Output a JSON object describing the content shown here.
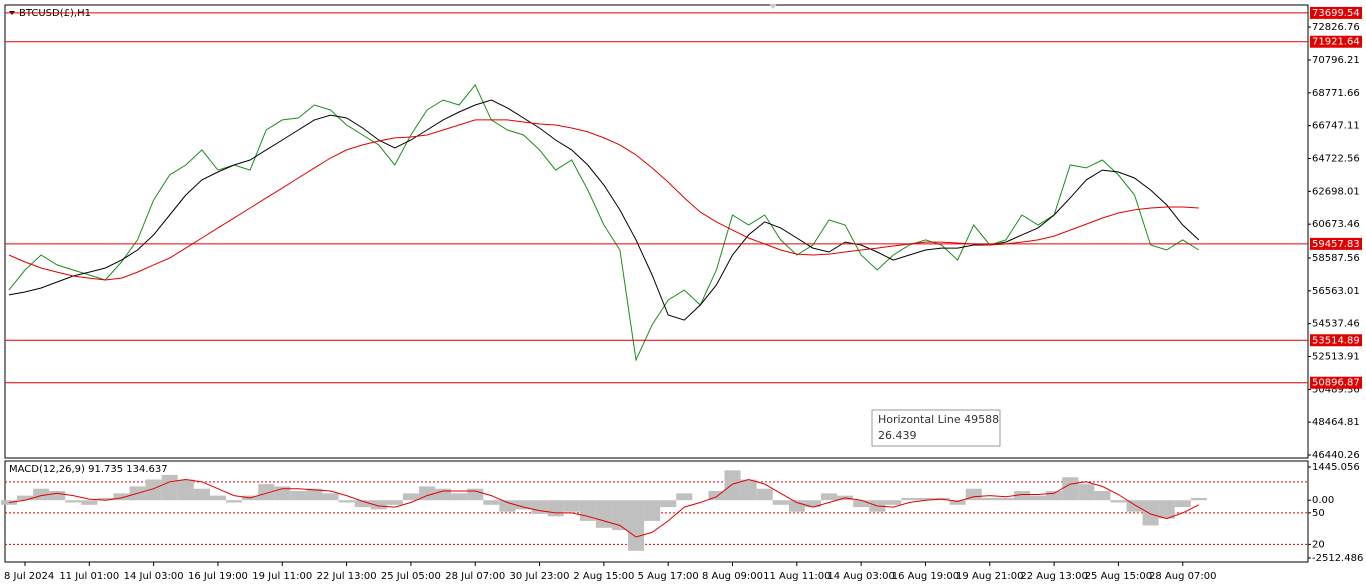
{
  "chart_data": [
    {
      "type": "line",
      "title": "BTCUSD(£),H1",
      "categories": [
        null,
        "8 Jul 2024",
        null,
        null,
        null,
        "11 Jul 01:00",
        null,
        null,
        null,
        "14 Jul 03:00",
        null,
        null,
        null,
        "16 Jul 19:00",
        null,
        null,
        null,
        "19 Jul 11:00",
        null,
        null,
        null,
        "22 Jul 13:00",
        null,
        null,
        null,
        "25 Jul 05:00",
        null,
        null,
        null,
        "28 Jul 07:00",
        null,
        null,
        null,
        "30 Jul 23:00",
        null,
        null,
        null,
        "2 Aug 15:00",
        null,
        null,
        null,
        "5 Aug 17:00",
        null,
        null,
        null,
        "8 Aug 09:00",
        null,
        null,
        null,
        "11 Aug 11:00",
        null,
        null,
        null,
        "14 Aug 03:00",
        null,
        null,
        null,
        "16 Aug 19:00",
        null,
        null,
        null,
        "19 Aug 21:00",
        null,
        null,
        null,
        "22 Aug 13:00",
        null,
        null,
        null,
        "25 Aug 15:00",
        null,
        null,
        null,
        "28 Aug 07:00",
        null
      ],
      "series": [
        {
          "color": "#1a8f1a",
          "values": [
            56610,
            57850,
            58770,
            58160,
            57850,
            57540,
            57230,
            58340,
            59700,
            62160,
            63710,
            64320,
            65250,
            64010,
            64320,
            64010,
            66480,
            67100,
            67220,
            68020,
            67710,
            66790,
            66170,
            65560,
            64320,
            66170,
            67710,
            68330,
            68020,
            69260,
            67100,
            66480,
            66170,
            65250,
            64010,
            64630,
            62780,
            60620,
            59080,
            52300,
            54460,
            56000,
            56610,
            55690,
            57850,
            61240,
            60620,
            61240,
            59700,
            58770,
            59390,
            60930,
            60620,
            58770,
            57850,
            58770,
            59390,
            59700,
            59390,
            58460,
            60620,
            59390,
            59700,
            61240,
            60620,
            61240,
            64320,
            64140,
            64630,
            63710,
            62470,
            59390,
            59080,
            59700,
            59080
          ]
        },
        {
          "color": "#000000",
          "values": [
            56310,
            56490,
            56740,
            57110,
            57480,
            57720,
            57970,
            58460,
            59080,
            60010,
            61240,
            62470,
            63400,
            63890,
            64320,
            64630,
            65250,
            65860,
            66480,
            67100,
            67400,
            67220,
            66600,
            65860,
            65370,
            65860,
            66480,
            67100,
            67590,
            68020,
            68330,
            67840,
            67220,
            66600,
            65860,
            65250,
            64320,
            63090,
            61550,
            59700,
            57540,
            55070,
            54760,
            55690,
            56920,
            58770,
            60010,
            60810,
            60440,
            59820,
            59200,
            58960,
            59570,
            59390,
            58960,
            58460,
            58770,
            59080,
            59200,
            59200,
            59390,
            59390,
            59570,
            60010,
            60440,
            61240,
            62290,
            63400,
            64010,
            63890,
            63520,
            62780,
            61860,
            60620,
            59700
          ]
        },
        {
          "color": "#e00000",
          "values": [
            58770,
            58340,
            57970,
            57720,
            57480,
            57350,
            57230,
            57350,
            57720,
            58160,
            58590,
            59200,
            59820,
            60440,
            61050,
            61670,
            62290,
            62900,
            63520,
            64140,
            64750,
            65250,
            65560,
            65800,
            65990,
            66050,
            66170,
            66480,
            66790,
            67100,
            67100,
            67100,
            66970,
            66850,
            66790,
            66600,
            66360,
            65990,
            65560,
            64940,
            64140,
            63270,
            62290,
            61420,
            60810,
            60310,
            59820,
            59450,
            59080,
            58830,
            58770,
            58830,
            58960,
            59080,
            59200,
            59330,
            59450,
            59570,
            59570,
            59510,
            59450,
            59390,
            59450,
            59570,
            59700,
            59940,
            60310,
            60680,
            61050,
            61360,
            61550,
            61670,
            61730,
            61730,
            61670
          ]
        }
      ],
      "ylim": [
        46255,
        74187
      ],
      "yticks": [
        72826.76,
        70796.21,
        68771.66,
        66747.11,
        64722.56,
        62698.01,
        60673.46,
        58587.56,
        56563.01,
        54537.46,
        52513.91,
        50489.36,
        48464.81,
        46440.26
      ],
      "hlines": [
        73699.54,
        71921.64,
        59457.83,
        53514.89,
        50896.87
      ],
      "hline_color": "#e00000",
      "annotation": {
        "text": "Horizontal Line 49588",
        "subtext": "26.439"
      }
    },
    {
      "type": "bar",
      "title": "MACD(12,26,9) 91.735 134.637",
      "series": [
        {
          "color": "#c0c0c0",
          "values": [
            -200,
            200,
            500,
            400,
            -100,
            -200,
            100,
            300,
            600,
            900,
            1100,
            900,
            500,
            200,
            -100,
            200,
            700,
            600,
            400,
            500,
            300,
            -100,
            -300,
            -400,
            -200,
            300,
            600,
            500,
            300,
            500,
            -200,
            -500,
            -400,
            -600,
            -700,
            -500,
            -900,
            -1200,
            -1300,
            -2200,
            -900,
            -300,
            300,
            0,
            400,
            1300,
            900,
            500,
            -200,
            -500,
            -300,
            300,
            200,
            -300,
            -500,
            -200,
            100,
            100,
            100,
            -200,
            500,
            100,
            100,
            400,
            200,
            400,
            1000,
            700,
            400,
            -100,
            -500,
            -1100,
            -800,
            -300,
            100
          ]
        },
        {
          "type": "line",
          "color": "#e00000",
          "values": [
            -100,
            0,
            200,
            300,
            200,
            50,
            0,
            100,
            300,
            500,
            800,
            900,
            800,
            500,
            200,
            100,
            300,
            500,
            500,
            450,
            400,
            200,
            -50,
            -250,
            -300,
            -100,
            200,
            400,
            400,
            400,
            200,
            -100,
            -300,
            -450,
            -550,
            -550,
            -700,
            -900,
            -1100,
            -1600,
            -1400,
            -900,
            -300,
            -100,
            150,
            700,
            900,
            700,
            300,
            -100,
            -300,
            -100,
            100,
            0,
            -250,
            -300,
            -100,
            0,
            50,
            -50,
            150,
            200,
            150,
            250,
            250,
            300,
            700,
            800,
            600,
            250,
            -200,
            -600,
            -800,
            -550,
            -200
          ]
        }
      ],
      "ylim": [
        -2601,
        1662
      ],
      "yticks": [
        1445.056,
        {
          "value": 0,
          "label": "0.00"
        },
        {
          "value": -550,
          "label": "50"
        },
        {
          "value": -1920,
          "label": "20"
        },
        -2512.486
      ],
      "levels": [
        800,
        -550,
        -1920
      ],
      "level_color": "#e00000"
    }
  ]
}
